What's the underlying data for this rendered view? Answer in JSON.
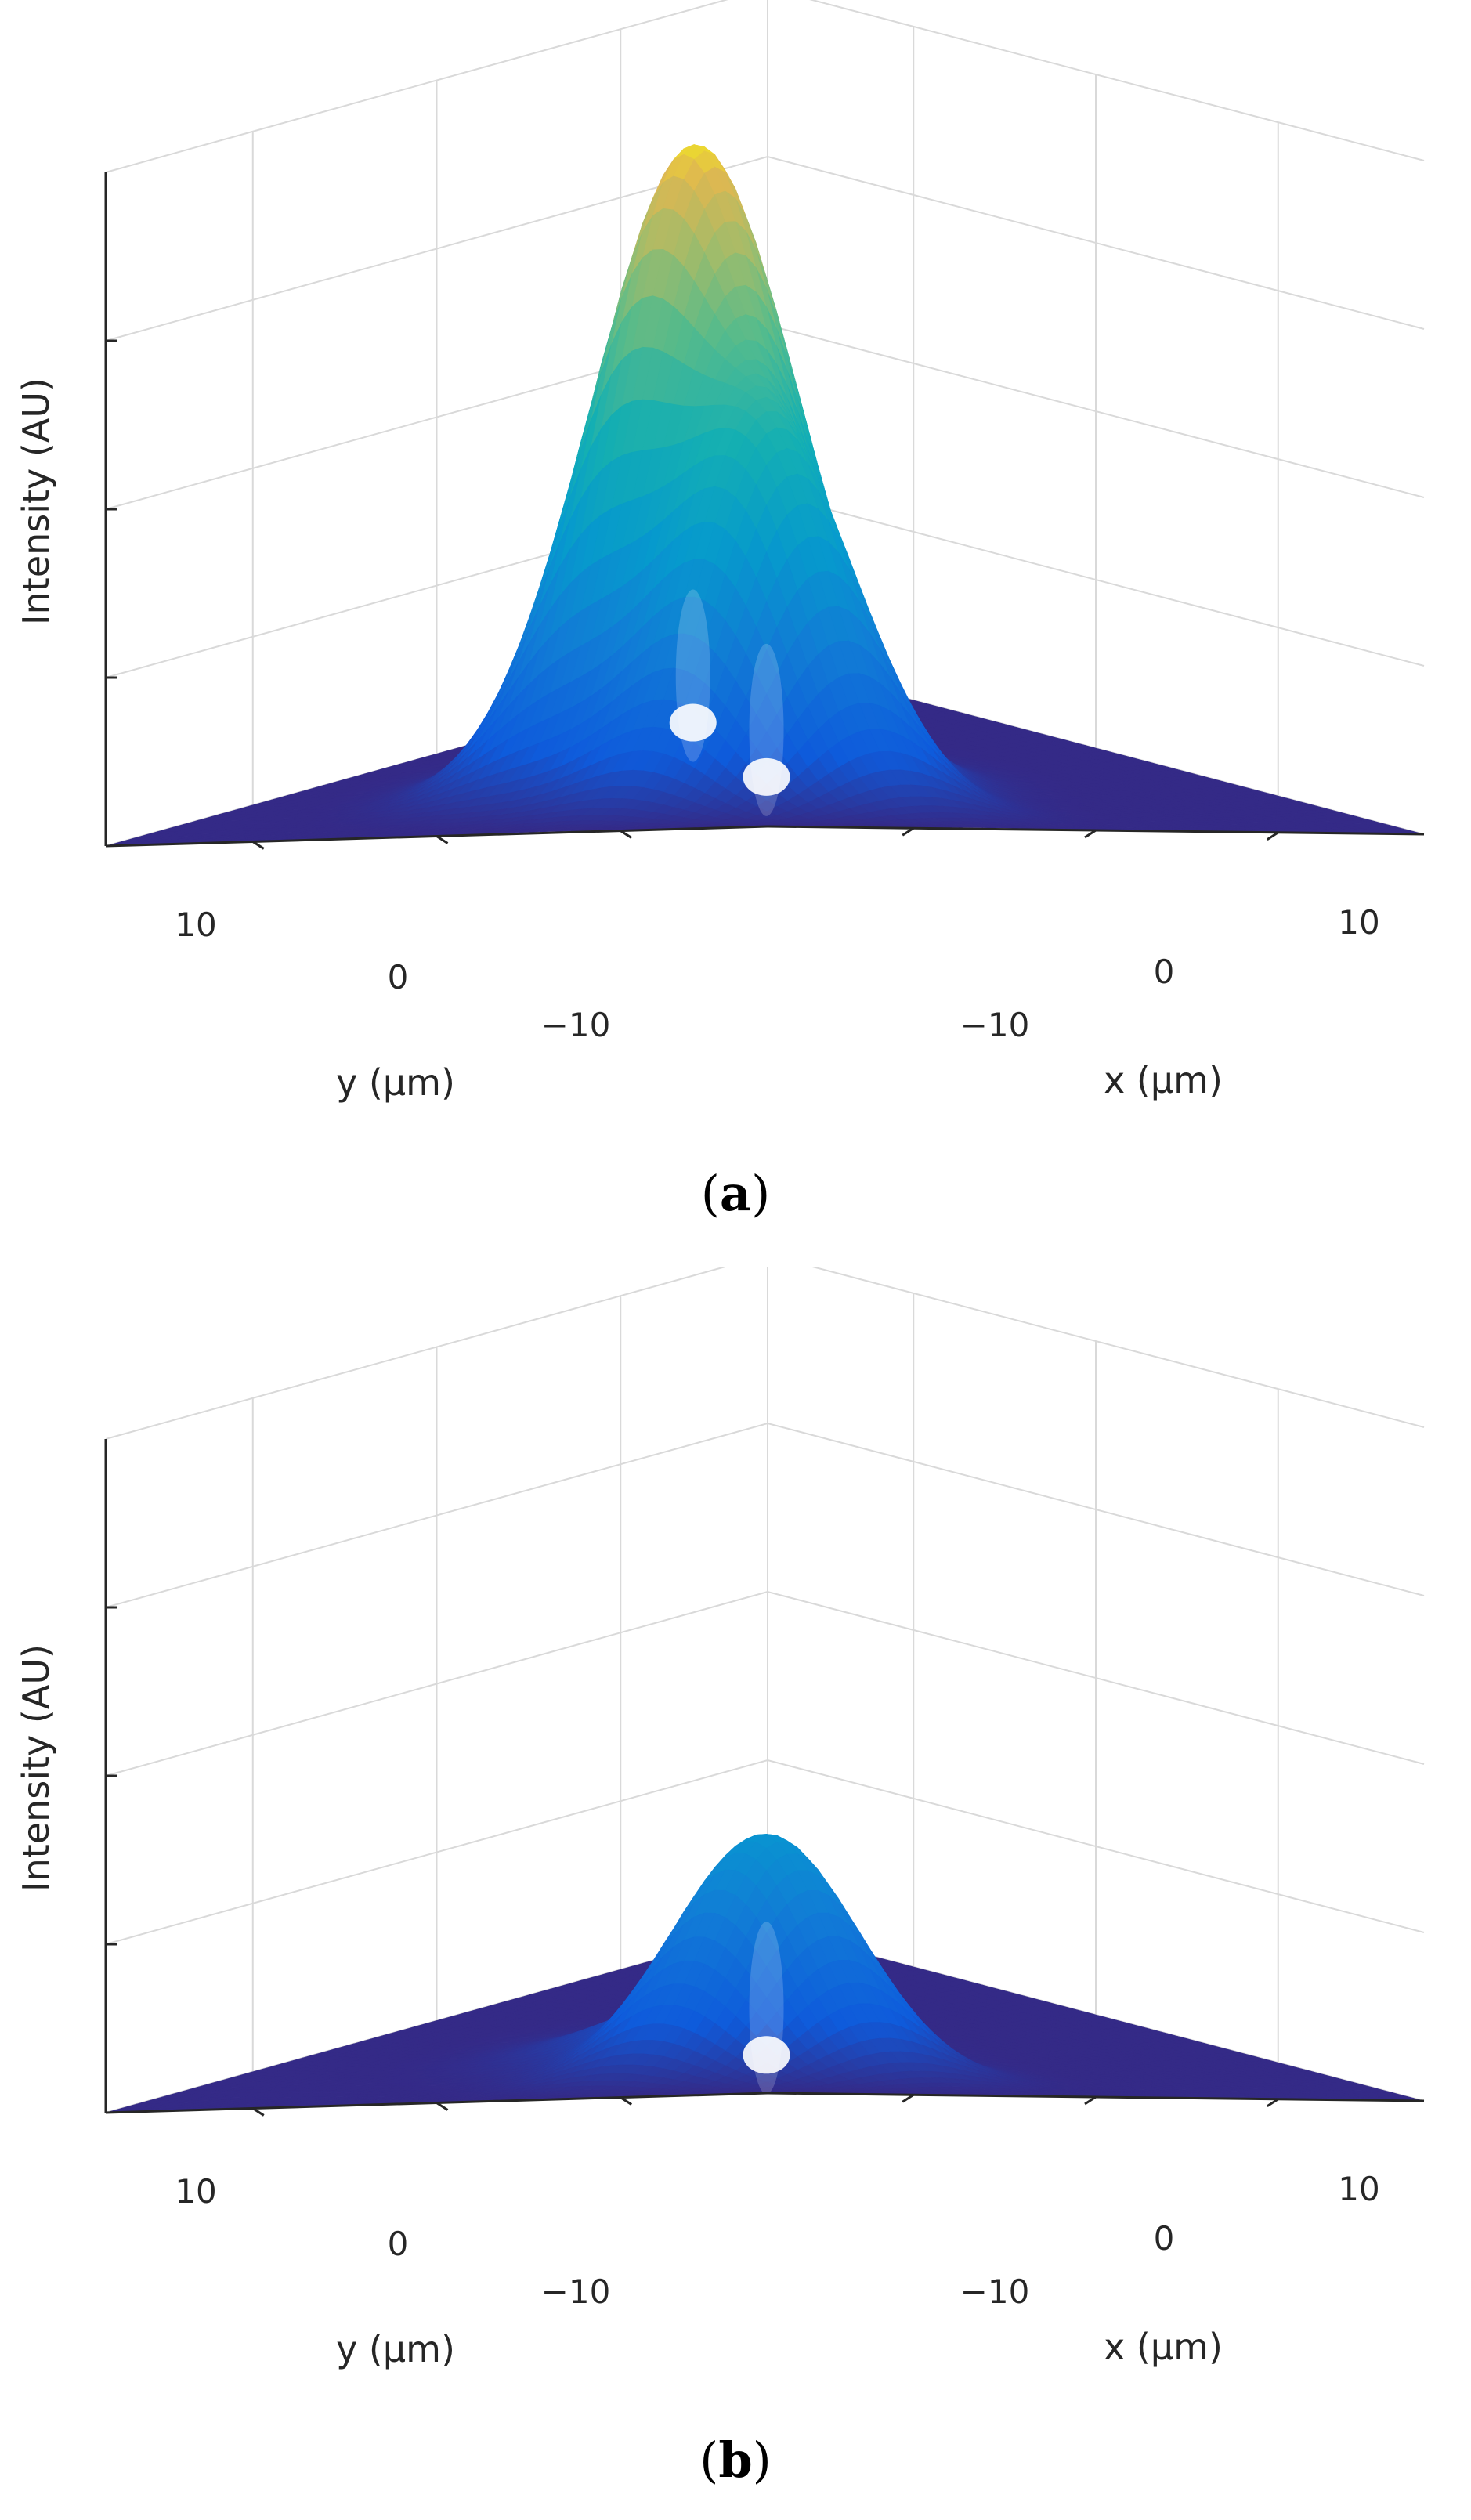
{
  "chart_data": [
    {
      "type": "surface",
      "caption_letter": "a",
      "caption_open": "(",
      "caption_close": ")",
      "xlabel": "x (μm)",
      "ylabel": "y (μm)",
      "zlabel": "Intensity (AU)",
      "x_ticks": [
        "−10",
        "0",
        "10"
      ],
      "y_ticks": [
        "10",
        "0",
        "−10"
      ],
      "xlim": [
        -18,
        18
      ],
      "ylim": [
        -18,
        18
      ],
      "zlim": [
        0,
        1
      ],
      "z_tick_values": [
        0,
        0.25,
        0.5,
        0.75
      ],
      "grid": true,
      "colormap": "parula",
      "peaks": [
        {
          "x": -2,
          "y": 2,
          "amplitude": 0.94,
          "sigma": 4.0
        },
        {
          "x": -6,
          "y": -6,
          "amplitude": 0.5,
          "sigma": 3.6
        }
      ]
    },
    {
      "type": "surface",
      "caption_letter": "b",
      "caption_open": "(",
      "caption_close": ")",
      "xlabel": "x (μm)",
      "ylabel": "y (μm)",
      "zlabel": "Intensity (AU)",
      "x_ticks": [
        "−10",
        "0",
        "10"
      ],
      "y_ticks": [
        "10",
        "0",
        "−10"
      ],
      "xlim": [
        -18,
        18
      ],
      "ylim": [
        -18,
        18
      ],
      "zlim": [
        0,
        1
      ],
      "z_tick_values": [
        0,
        0.25,
        0.5,
        0.75
      ],
      "grid": true,
      "colormap": "parula",
      "peaks": [
        {
          "x": -2,
          "y": 2,
          "amplitude": 0.08,
          "sigma": 4.0
        },
        {
          "x": -6,
          "y": -6,
          "amplitude": 0.36,
          "sigma": 3.6
        }
      ]
    }
  ]
}
